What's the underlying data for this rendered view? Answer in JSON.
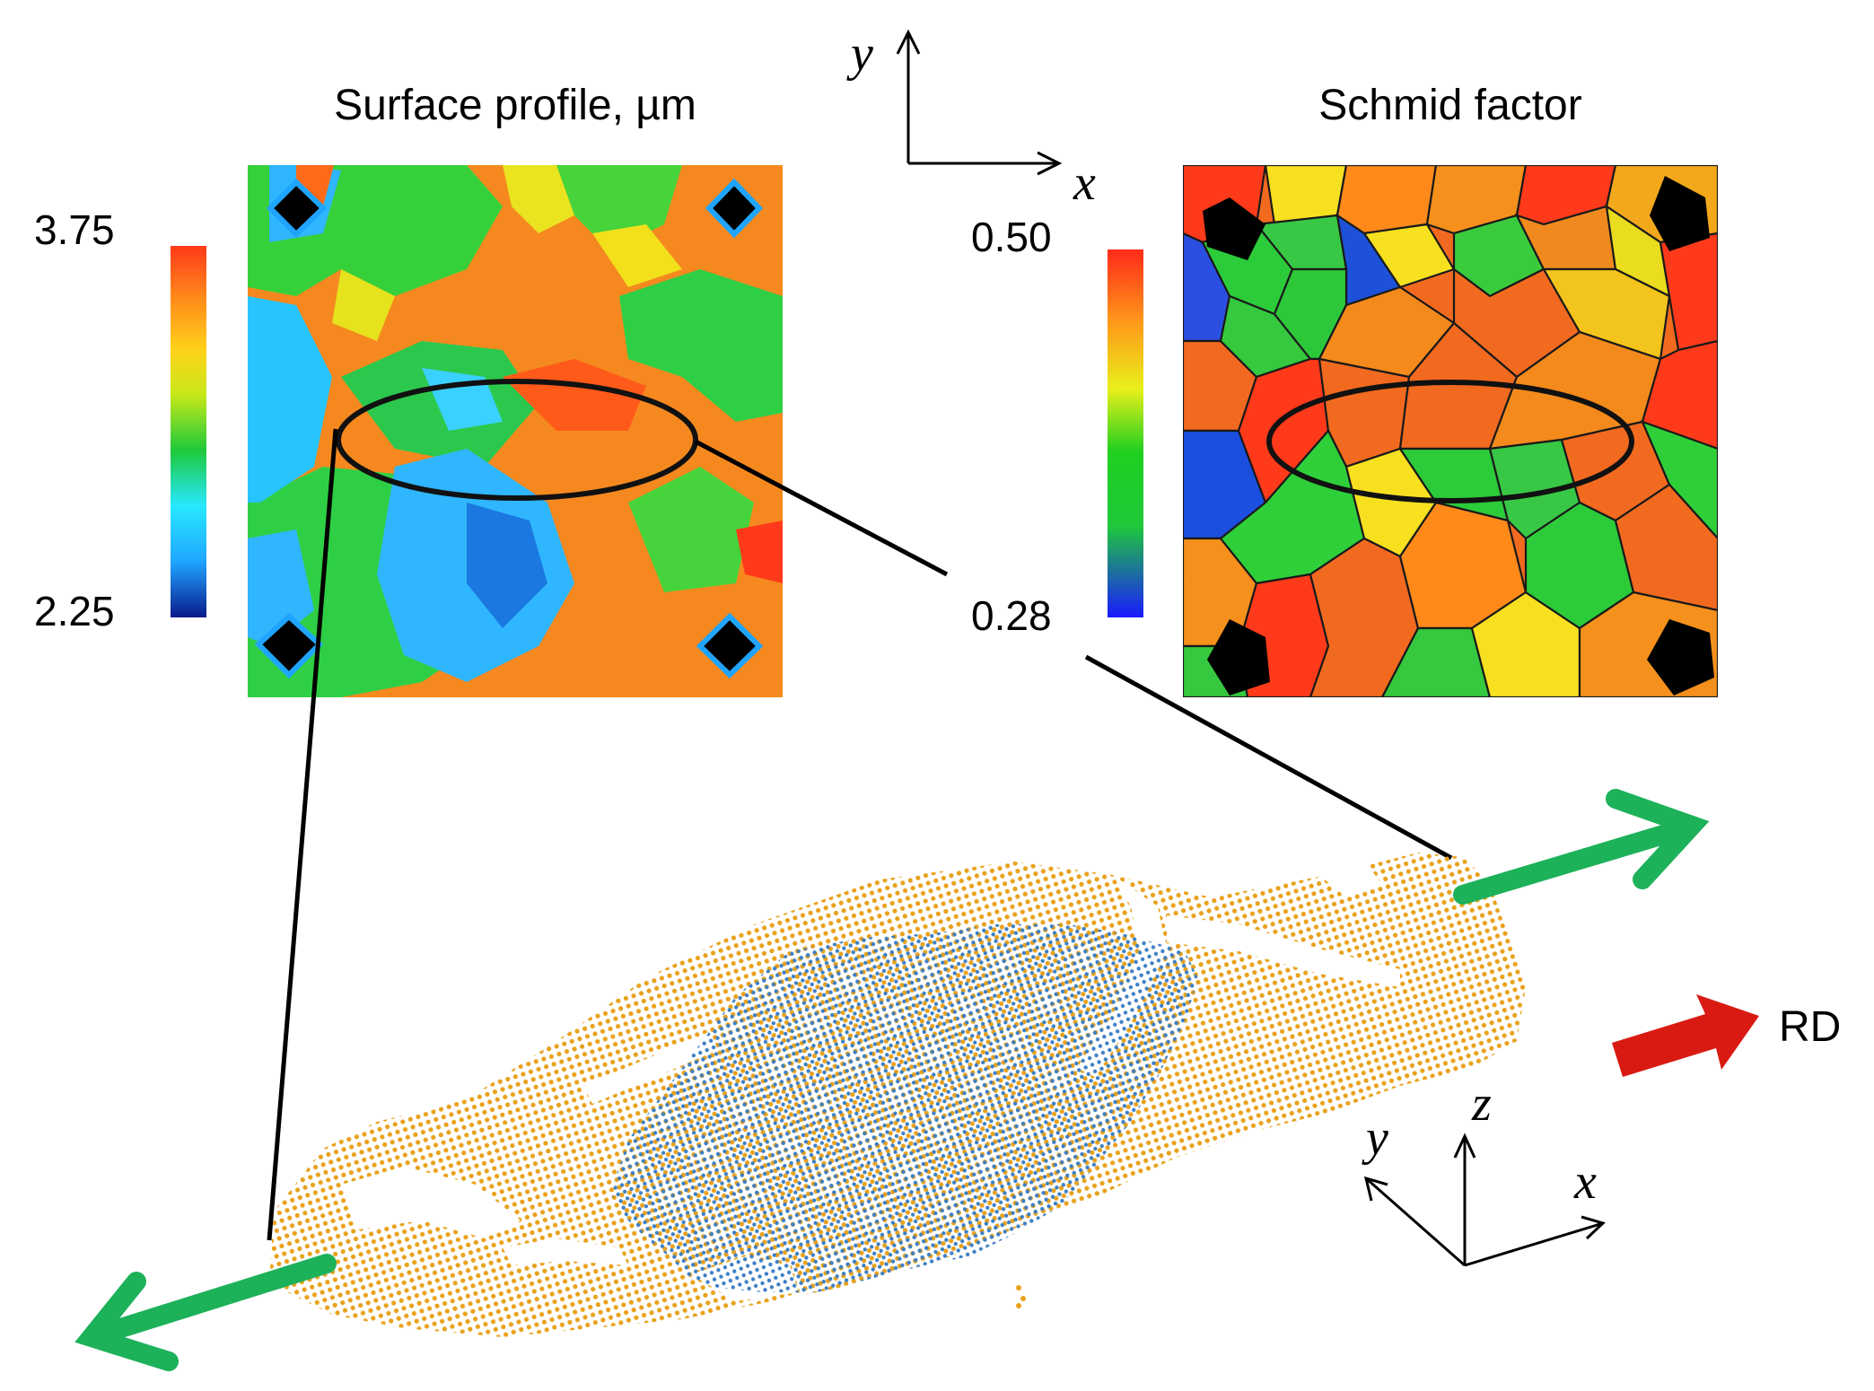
{
  "panels": {
    "surface": {
      "title": "Surface profile, µm",
      "colorbar_max": "3.75",
      "colorbar_min": "2.25"
    },
    "schmid": {
      "title": "Schmid factor",
      "colorbar_max": "0.50",
      "colorbar_min": "0.28"
    }
  },
  "axes_2d": {
    "x": "x",
    "y": "y"
  },
  "axes_3d": {
    "x": "x",
    "y": "y",
    "z": "z"
  },
  "rolling_direction": "RD",
  "colors": {
    "outer_points": "#E8A21C",
    "inner_points": "#3D7FC4",
    "load_arrow": "#1DB15A",
    "rd_arrow": "#D91A12",
    "colormap": [
      "#0a1a8c",
      "#1fa5ff",
      "#27e8ff",
      "#1fc93a",
      "#c8e81a",
      "#ffd21a",
      "#ff8a1a",
      "#ff3a1a"
    ]
  }
}
